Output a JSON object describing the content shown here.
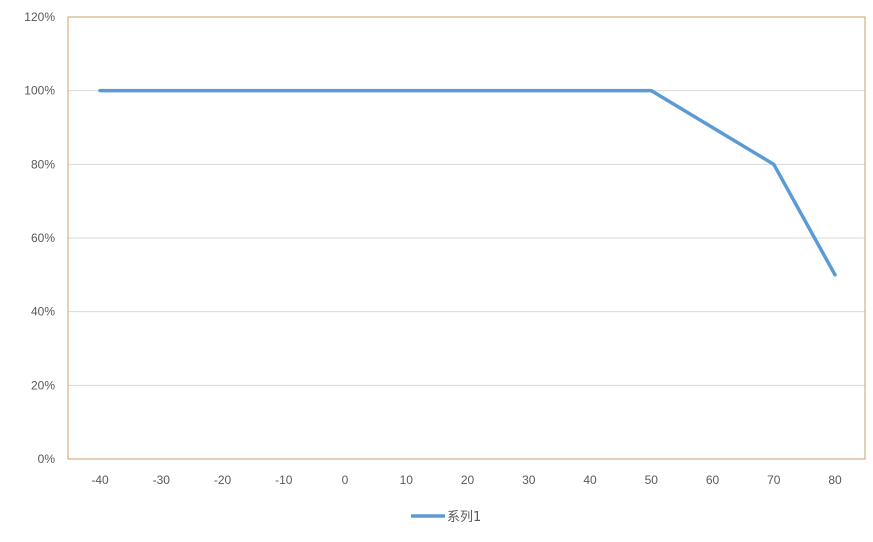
{
  "chart_data": {
    "type": "line",
    "title": "",
    "xlabel": "",
    "ylabel": "",
    "x": [
      -40,
      -30,
      -20,
      -10,
      0,
      10,
      20,
      30,
      40,
      50,
      60,
      70,
      80
    ],
    "x_tick_labels": [
      "-40",
      "-30",
      "-20",
      "-10",
      "0",
      "10",
      "20",
      "30",
      "40",
      "50",
      "60",
      "70",
      "80"
    ],
    "y_tick_labels": [
      "0%",
      "20%",
      "40%",
      "60%",
      "80%",
      "100%",
      "120%"
    ],
    "ylim": [
      0,
      1.2
    ],
    "y_format": "percent",
    "grid": "horizontal",
    "legend": "bottom",
    "series": [
      {
        "name": "系列1",
        "color": "#5B9BD5",
        "values": [
          1.0,
          1.0,
          1.0,
          1.0,
          1.0,
          1.0,
          1.0,
          1.0,
          1.0,
          1.0,
          0.9,
          0.8,
          0.5
        ]
      }
    ]
  },
  "colors": {
    "plot_border": "#C9A06B",
    "gridline": "#D9D9D9",
    "tick_text": "#595959"
  }
}
